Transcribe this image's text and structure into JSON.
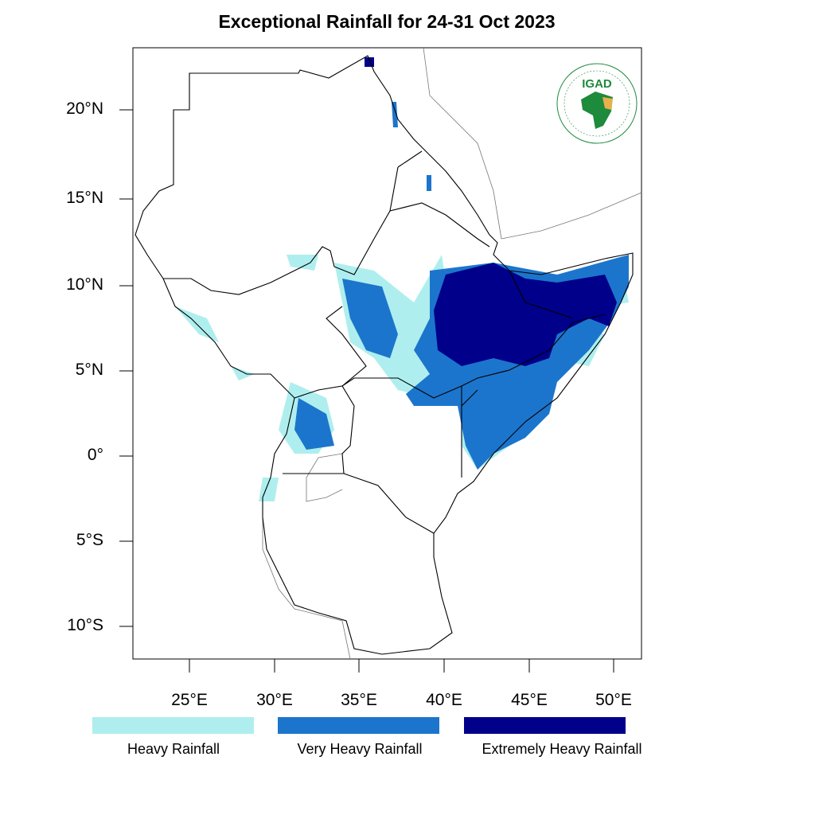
{
  "title": "Exceptional Rainfall for 24-31 Oct 2023",
  "logo": {
    "text": "IGAD",
    "ring_text": "INTERGOVERNMENTAL AUTHORITY ON DEVELOPMENT / AUTORITE INTERGOUVERNEMENTALE POUR LE DEVELOPPEMENT",
    "colors": {
      "green": "#1e8a3c",
      "gold": "#e8b04a"
    }
  },
  "lat_ticks": [
    "20°N",
    "15°N",
    "10°N",
    "5°N",
    "0°",
    "5°S",
    "10°S"
  ],
  "lon_ticks": [
    "25°E",
    "30°E",
    "35°E",
    "40°E",
    "45°E",
    "50°E"
  ],
  "legend": [
    {
      "label": "Heavy Rainfall",
      "color": "#afeeee"
    },
    {
      "label": "Very Heavy Rainfall",
      "color": "#1c75cc"
    },
    {
      "label": "Extremely Heavy Rainfall",
      "color": "#00008b"
    }
  ],
  "extent": {
    "lon": [
      21.7,
      51.6
    ],
    "lat": [
      -11.9,
      23.6
    ]
  }
}
